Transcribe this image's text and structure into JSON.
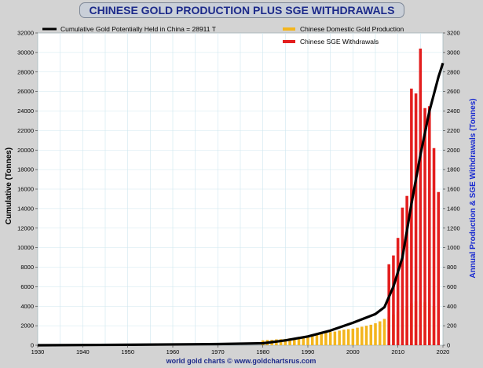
{
  "chart_data": {
    "type": "bar+line",
    "title": "CHINESE GOLD PRODUCTION PLUS SGE WITHDRAWALS",
    "ylabel_left": "Cumulative (Tonnes)",
    "ylabel_right": "Annual Production & SGE Withdrawals (Tonnes)",
    "footer": "world gold charts © www.goldchartsrus.com",
    "xlim": [
      1930,
      2020
    ],
    "ylim_left": [
      0,
      32000
    ],
    "ylim_right": [
      0,
      3200
    ],
    "x_ticks": [
      "1930",
      "1940",
      "1950",
      "1960",
      "1970",
      "1980",
      "1990",
      "2000",
      "2010",
      "2020"
    ],
    "y_left_ticks": [
      "0",
      "2000",
      "4000",
      "6000",
      "8000",
      "10000",
      "12000",
      "14000",
      "16000",
      "18000",
      "20000",
      "22000",
      "24000",
      "26000",
      "28000",
      "30000",
      "32000"
    ],
    "y_right_ticks": [
      "0",
      "200",
      "400",
      "600",
      "800",
      "1000",
      "1200",
      "1400",
      "1600",
      "1800",
      "2000",
      "2200",
      "2400",
      "2600",
      "2800",
      "3000",
      "3200"
    ],
    "legend": {
      "line": "Cumulative Gold Potentially Held in China  = 28911 T",
      "bar1": "Chinese Domestic Gold Production",
      "bar2": "Chinese SGE Withdrawals"
    },
    "colors": {
      "production": "#f3b51e",
      "withdrawals": "#e31e1e",
      "cumulative": "#000000"
    },
    "series": [
      {
        "name": "Chinese Domestic Gold Production",
        "x": [
          1980,
          1981,
          1982,
          1983,
          1984,
          1985,
          1986,
          1987,
          1988,
          1989,
          1990,
          1991,
          1992,
          1993,
          1994,
          1995,
          1996,
          1997,
          1998,
          1999,
          2000,
          2001,
          2002,
          2003,
          2004,
          2005,
          2006,
          2007,
          2008,
          2009,
          2010,
          2011,
          2012,
          2013,
          2014,
          2015,
          2016,
          2017,
          2018,
          2019
        ],
        "values": [
          50,
          55,
          55,
          60,
          62,
          65,
          70,
          75,
          80,
          90,
          100,
          110,
          120,
          128,
          130,
          135,
          140,
          150,
          160,
          165,
          170,
          180,
          190,
          200,
          210,
          225,
          245,
          270,
          290,
          315,
          345,
          370,
          400,
          430,
          450,
          450,
          440,
          420,
          400,
          380
        ]
      },
      {
        "name": "Chinese SGE Withdrawals",
        "x": [
          2008,
          2009,
          2010,
          2011,
          2012,
          2013,
          2014,
          2015,
          2016,
          2017,
          2018,
          2019
        ],
        "values": [
          830,
          920,
          1100,
          1410,
          1530,
          2630,
          2580,
          3040,
          2430,
          2450,
          2020,
          1570
        ]
      },
      {
        "name": "Cumulative Gold Potentially Held in China",
        "x": [
          1930,
          1950,
          1970,
          1980,
          1985,
          1990,
          1995,
          2000,
          2005,
          2007,
          2009,
          2011,
          2013,
          2015,
          2017,
          2019,
          2020
        ],
        "values": [
          0,
          50,
          120,
          200,
          500,
          900,
          1500,
          2300,
          3200,
          3900,
          6000,
          9000,
          14500,
          19500,
          24000,
          27500,
          28911
        ]
      }
    ]
  }
}
